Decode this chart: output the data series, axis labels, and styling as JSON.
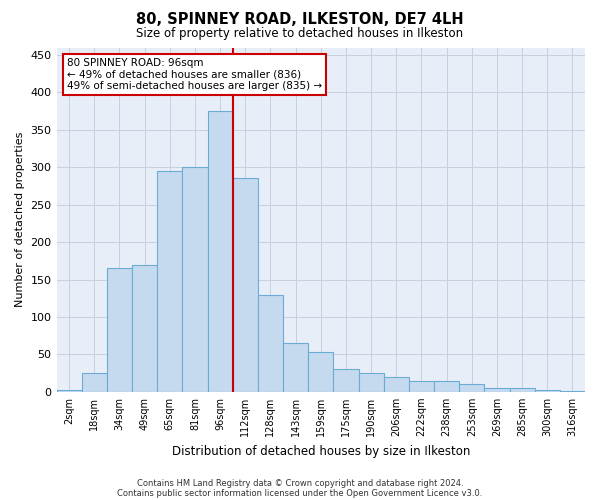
{
  "title": "80, SPINNEY ROAD, ILKESTON, DE7 4LH",
  "subtitle": "Size of property relative to detached houses in Ilkeston",
  "xlabel": "Distribution of detached houses by size in Ilkeston",
  "ylabel": "Number of detached properties",
  "footnote1": "Contains HM Land Registry data © Crown copyright and database right 2024.",
  "footnote2": "Contains public sector information licensed under the Open Government Licence v3.0.",
  "annotation_line1": "80 SPINNEY ROAD: 96sqm",
  "annotation_line2": "← 49% of detached houses are smaller (836)",
  "annotation_line3": "49% of semi-detached houses are larger (835) →",
  "categories": [
    "2sqm",
    "18sqm",
    "34sqm",
    "49sqm",
    "65sqm",
    "81sqm",
    "96sqm",
    "112sqm",
    "128sqm",
    "143sqm",
    "159sqm",
    "175sqm",
    "190sqm",
    "206sqm",
    "222sqm",
    "238sqm",
    "253sqm",
    "269sqm",
    "285sqm",
    "300sqm",
    "316sqm"
  ],
  "values": [
    2,
    25,
    165,
    170,
    295,
    300,
    375,
    285,
    130,
    65,
    53,
    30,
    25,
    20,
    15,
    15,
    10,
    5,
    5,
    3,
    1
  ],
  "bar_color": "#c5d9ef",
  "bar_edge_color": "#6aacd4",
  "vline_color": "#cc0000",
  "annotation_box_edge": "#cc0000",
  "background_color": "#ffffff",
  "plot_bg_color": "#e8eef8",
  "grid_color": "#c8d0e0",
  "ylim": [
    0,
    460
  ],
  "yticks": [
    0,
    50,
    100,
    150,
    200,
    250,
    300,
    350,
    400,
    450
  ]
}
